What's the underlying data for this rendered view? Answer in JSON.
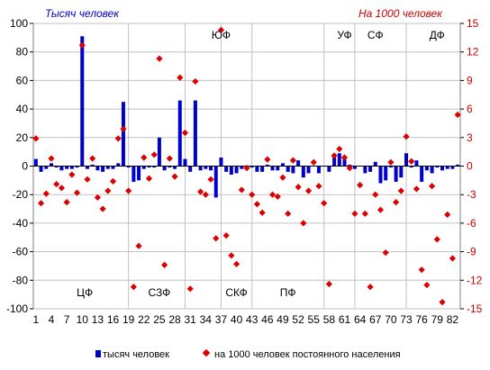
{
  "chart_data": {
    "type": "bar+scatter",
    "left_axis_title": "Тысяч человек",
    "right_axis_title": "На 1000 человек",
    "left_ylim": [
      -100,
      100
    ],
    "left_ticks": [
      100,
      80,
      60,
      40,
      20,
      0,
      -20,
      -40,
      -60,
      -80,
      -100
    ],
    "right_ylim": [
      -15,
      15
    ],
    "right_ticks": [
      15,
      12,
      9,
      6,
      3,
      0,
      -3,
      -6,
      -9,
      -12,
      -15
    ],
    "x_ticks": [
      "1",
      "4",
      "7",
      "10",
      "13",
      "16",
      "19",
      "22",
      "25",
      "28",
      "31",
      "34",
      "37",
      "40",
      "43",
      "46",
      "49",
      "52",
      "55",
      "58",
      "61",
      "64",
      "67",
      "70",
      "73",
      "76",
      "79",
      "82"
    ],
    "grid": "horizontal only, dividers between federal districts",
    "regions_top": [
      {
        "label": "ЮФ",
        "center": 36.5
      },
      {
        "label": "УФ",
        "center": 60.5
      },
      {
        "label": "СФ",
        "center": 66.5
      },
      {
        "label": "ДФ",
        "center": 78.5
      }
    ],
    "regions_bottom": [
      {
        "label": "ЦФ",
        "center": 10
      },
      {
        "label": "СЗФ",
        "center": 24.5
      },
      {
        "label": "СКФ",
        "center": 39.5
      },
      {
        "label": "ПФ",
        "center": 49.5
      }
    ],
    "district_boundaries": [
      18.5,
      29.5,
      36.5,
      42.5,
      56.5,
      62.5,
      72.5
    ],
    "series": [
      {
        "name": "тысяч человек",
        "axis": "left",
        "color": "#0000cc",
        "values": [
          5,
          -4,
          -2,
          2,
          -1,
          -3,
          -2,
          -2,
          -1,
          91,
          -2,
          1,
          -3,
          -4,
          -2,
          -2,
          2,
          45,
          -1,
          -11,
          -10,
          -2,
          -1,
          -1,
          20,
          -3,
          -1,
          -2,
          46,
          5,
          -4,
          46,
          -3,
          -2,
          -3,
          -22,
          6,
          -4,
          -6,
          -5,
          -2,
          -2,
          -1,
          -4,
          -4,
          1,
          -3,
          -3,
          2,
          -4,
          -5,
          4,
          -8,
          -5,
          0,
          -5,
          0,
          -4,
          7,
          9,
          5,
          1,
          -2,
          0,
          -5,
          -4,
          3,
          -12,
          -10,
          -1,
          -11,
          -8,
          9,
          -1,
          4,
          -11,
          -3,
          -5,
          -1,
          -3,
          -2,
          -2,
          1
        ]
      },
      {
        "name": "на 1000 человек постоянного населения",
        "axis": "right",
        "color": "#dd0000",
        "values": [
          2.9,
          -3.9,
          -2.9,
          0.8,
          -1.9,
          -2.3,
          -3.8,
          -0.9,
          -2.8,
          12.7,
          -1.4,
          0.8,
          -3.3,
          -4.5,
          -2.6,
          -1.6,
          2.9,
          3.9,
          -2.6,
          -12.7,
          -8.4,
          0.9,
          -1.3,
          1.2,
          11.3,
          -10.4,
          0.8,
          -1.1,
          9.3,
          3.5,
          -12.9,
          8.9,
          -2.7,
          -3.0,
          -1.4,
          -7.6,
          14.3,
          -7.3,
          -9.4,
          -10.3,
          -2.5,
          -0.2,
          -3.0,
          -4.0,
          -4.9,
          0.7,
          -3.0,
          -3.2,
          -1.2,
          -5.0,
          0.6,
          -2.2,
          -6.0,
          -2.6,
          0.4,
          -2.1,
          -3.9,
          -12.4,
          1.1,
          1.8,
          0.9,
          -0.2,
          -5.0,
          -2.0,
          -5.0,
          -12.7,
          -3.0,
          -4.6,
          -9.1,
          0.4,
          -3.8,
          -2.6,
          3.1,
          0.5,
          -2.4,
          -10.9,
          -12.5,
          -2.1,
          -7.7,
          -14.3,
          -5.1,
          -9.7,
          5.4
        ]
      }
    ]
  }
}
